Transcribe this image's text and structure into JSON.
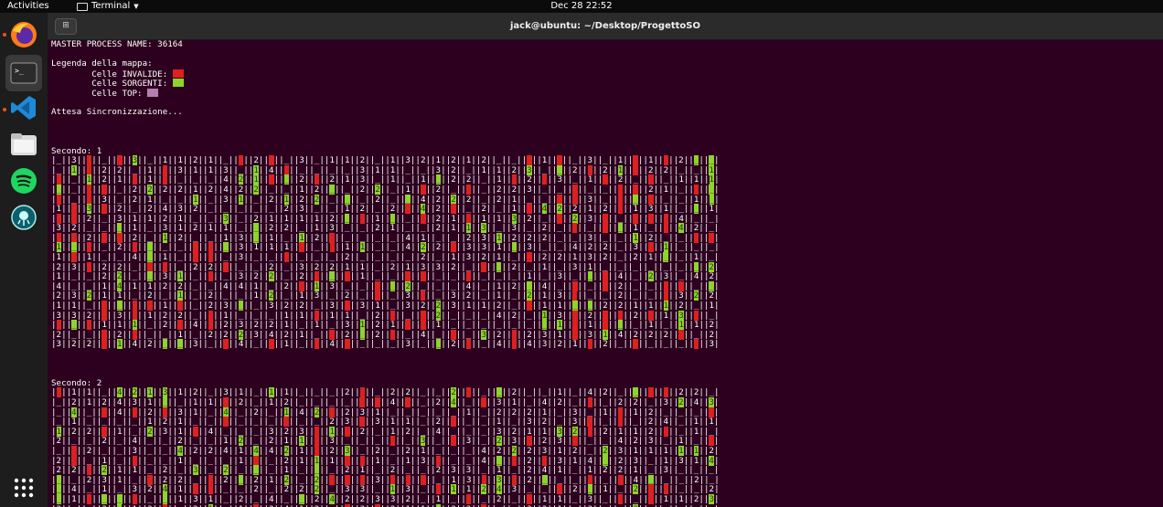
{
  "topbar": {
    "activities": "Activities",
    "app_menu": "Terminal",
    "clock": "Dec 28  22:52"
  },
  "window": {
    "title": "jack@ubuntu: ~/Desktop/ProgettoSO"
  },
  "dock": {
    "items": [
      "firefox-icon",
      "terminal-icon",
      "vscode-icon",
      "files-icon",
      "spotify-icon",
      "gitkraken-icon"
    ],
    "apps_grid": "show-applications-icon"
  },
  "terminal": {
    "header_lines": [
      "MASTER PROCESS NAME: 36164",
      "",
      "Legenda della mappa:",
      "        Celle INVALIDE: ",
      "        Celle SORGENTI: ",
      "        Celle TOP: ",
      "",
      "Attesa Sincronizzazione...",
      "",
      "",
      ""
    ],
    "legend_colors": {
      "invalide": "#dd2020",
      "sorgenti": "#8ed42c",
      "top": "#b57fb0"
    },
    "seconds": [
      {
        "label": "Secondo: 1",
        "rows": 20
      },
      {
        "label": "Secondo: 2",
        "rows": 13
      }
    ]
  },
  "colors": {
    "terminal_bg": "#2c001e",
    "invalid_cell": "#dd2020",
    "source_cell": "#8ed42c",
    "dock_bg": "#1d1d1d",
    "topbar_bg": "#0b0b0b"
  }
}
